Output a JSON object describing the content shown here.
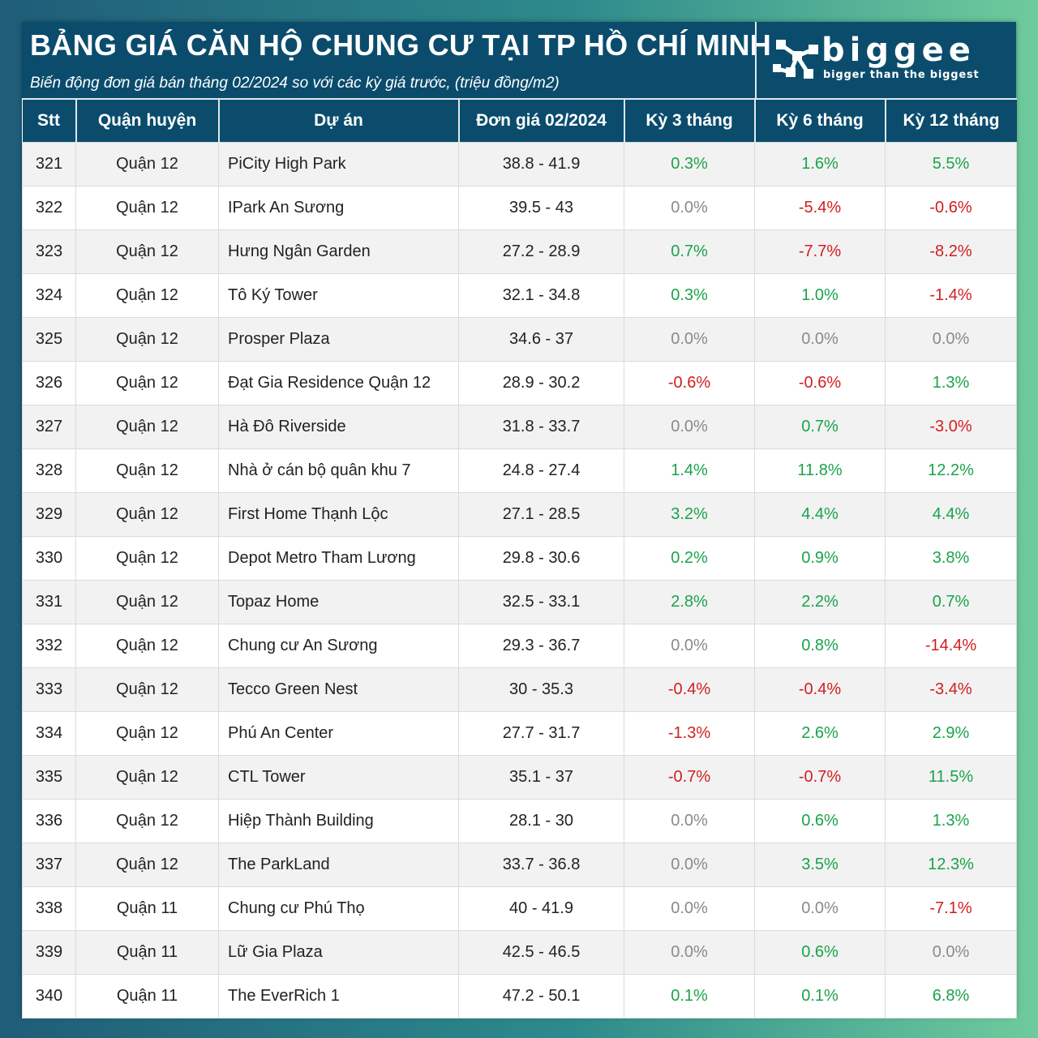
{
  "header": {
    "title": "BẢNG GIÁ CĂN HỘ CHUNG CƯ TẠI TP HỒ CHÍ MINH",
    "subtitle": "Biến động đơn giá bán tháng 02/2024 so với các kỳ giá trước, (triệu đồng/m2)"
  },
  "logo": {
    "wordmark": "biggee",
    "tagline": "bigger than the biggest",
    "icon": "biggee-network-icon"
  },
  "colors": {
    "header_bg": "#0b4c6d",
    "positive": "#1aa34a",
    "negative": "#d21e1e",
    "zero": "#8a8a8a"
  },
  "table": {
    "columns": [
      "Stt",
      "Quận huyện",
      "Dự án",
      "Đơn giá 02/2024",
      "Kỳ 3 tháng",
      "Kỳ 6 tháng",
      "Kỳ 12 tháng"
    ],
    "rows": [
      [
        "321",
        "Quận 12",
        "PiCity High Park",
        "38.8 - 41.9",
        "0.3%",
        "1.6%",
        "5.5%"
      ],
      [
        "322",
        "Quận 12",
        "IPark An Sương",
        "39.5 - 43",
        "0.0%",
        "-5.4%",
        "-0.6%"
      ],
      [
        "323",
        "Quận 12",
        "Hưng Ngân Garden",
        "27.2 - 28.9",
        "0.7%",
        "-7.7%",
        "-8.2%"
      ],
      [
        "324",
        "Quận 12",
        "Tô Ký Tower",
        "32.1 - 34.8",
        "0.3%",
        "1.0%",
        "-1.4%"
      ],
      [
        "325",
        "Quận 12",
        "Prosper Plaza",
        "34.6 - 37",
        "0.0%",
        "0.0%",
        "0.0%"
      ],
      [
        "326",
        "Quận 12",
        "Đạt Gia Residence Quận 12",
        "28.9 - 30.2",
        "-0.6%",
        "-0.6%",
        "1.3%"
      ],
      [
        "327",
        "Quận 12",
        "Hà Đô Riverside",
        "31.8 - 33.7",
        "0.0%",
        "0.7%",
        "-3.0%"
      ],
      [
        "328",
        "Quận 12",
        "Nhà ở cán bộ quân khu 7",
        "24.8 - 27.4",
        "1.4%",
        "11.8%",
        "12.2%"
      ],
      [
        "329",
        "Quận 12",
        "First Home Thạnh Lộc",
        "27.1 - 28.5",
        "3.2%",
        "4.4%",
        "4.4%"
      ],
      [
        "330",
        "Quận 12",
        "Depot Metro Tham Lương",
        "29.8 - 30.6",
        "0.2%",
        "0.9%",
        "3.8%"
      ],
      [
        "331",
        "Quận 12",
        "Topaz Home",
        "32.5 - 33.1",
        "2.8%",
        "2.2%",
        "0.7%"
      ],
      [
        "332",
        "Quận 12",
        "Chung cư An Sương",
        "29.3 - 36.7",
        "0.0%",
        "0.8%",
        "-14.4%"
      ],
      [
        "333",
        "Quận 12",
        "Tecco Green Nest",
        "30 - 35.3",
        "-0.4%",
        "-0.4%",
        "-3.4%"
      ],
      [
        "334",
        "Quận 12",
        "Phú An Center",
        "27.7 - 31.7",
        "-1.3%",
        "2.6%",
        "2.9%"
      ],
      [
        "335",
        "Quận 12",
        "CTL Tower",
        "35.1 - 37",
        "-0.7%",
        "-0.7%",
        "11.5%"
      ],
      [
        "336",
        "Quận 12",
        "Hiệp Thành Building",
        "28.1 - 30",
        "0.0%",
        "0.6%",
        "1.3%"
      ],
      [
        "337",
        "Quận 12",
        "The ParkLand",
        "33.7 - 36.8",
        "0.0%",
        "3.5%",
        "12.3%"
      ],
      [
        "338",
        "Quận 11",
        "Chung cư Phú Thọ",
        "40 - 41.9",
        "0.0%",
        "0.0%",
        "-7.1%"
      ],
      [
        "339",
        "Quận 11",
        "Lữ Gia Plaza",
        "42.5 - 46.5",
        "0.0%",
        "0.6%",
        "0.0%"
      ],
      [
        "340",
        "Quận 11",
        "The EverRich 1",
        "47.2 - 50.1",
        "0.1%",
        "0.1%",
        "6.8%"
      ]
    ]
  }
}
